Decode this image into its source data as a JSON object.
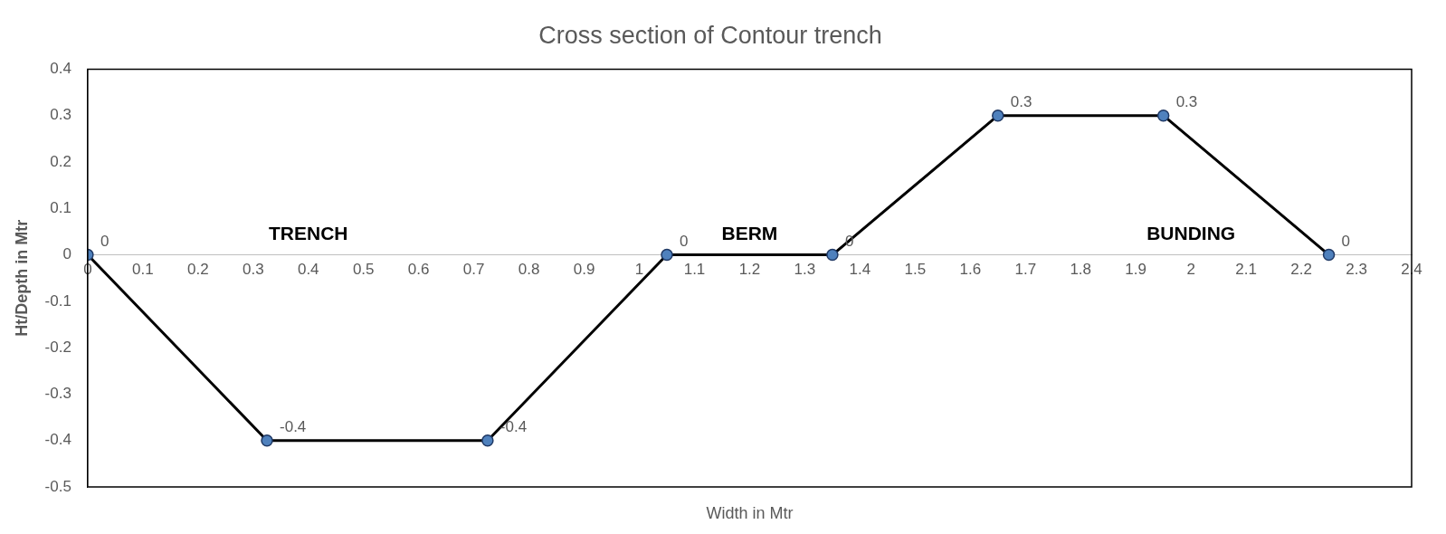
{
  "chart_data": {
    "type": "line",
    "title": "Cross section of Contour trench",
    "xlabel": "Width in Mtr",
    "ylabel": "Ht/Depth in Mtr",
    "x": [
      0,
      0.325,
      0.725,
      1.05,
      1.35,
      1.65,
      1.95,
      2.25
    ],
    "series": [
      {
        "color": "#000000",
        "values": [
          0,
          -0.4,
          -0.4,
          0,
          0,
          0.3,
          0.3,
          0
        ]
      }
    ],
    "xlim": [
      0,
      2.4
    ],
    "xticks": [
      0,
      0.1,
      0.2,
      0.3,
      0.4,
      0.5,
      0.6,
      0.7,
      0.8,
      0.9,
      1,
      1.1,
      1.2,
      1.3,
      1.4,
      1.5,
      1.6,
      1.7,
      1.8,
      1.9,
      2,
      2.1,
      2.2,
      2.3,
      2.4
    ],
    "ylim": [
      -0.5,
      0.4
    ],
    "yticks": [
      -0.5,
      -0.4,
      -0.3,
      -0.2,
      -0.1,
      0,
      0.1,
      0.2,
      0.3,
      0.4
    ],
    "marker": "circle",
    "line_style": "solid",
    "grid": false,
    "data_labels": true,
    "annotations": [
      "TRENCH",
      "BERM",
      "BUNDING"
    ]
  }
}
